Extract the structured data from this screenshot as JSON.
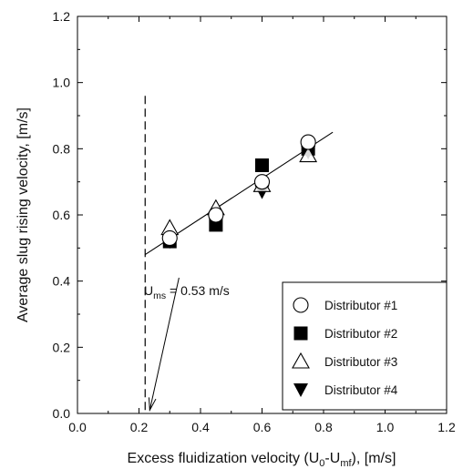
{
  "chart_data": {
    "type": "scatter",
    "xlabel": "Excess fluidization velocity (U",
    "xlabel_sub1": "0",
    "xlabel_mid": "-U",
    "xlabel_sub2": "mf",
    "xlabel_end": "), [m/s]",
    "ylabel": "Average slug rising velocity, [m/s]",
    "xlim": [
      0.0,
      1.2
    ],
    "ylim": [
      0.0,
      1.2
    ],
    "x_ticks": [
      "0.0",
      "0.2",
      "0.4",
      "0.6",
      "0.8",
      "1.0",
      "1.2"
    ],
    "y_ticks": [
      "0.0",
      "0.2",
      "0.4",
      "0.6",
      "0.8",
      "1.0",
      "1.2"
    ],
    "legend_position": "lower-right",
    "series": [
      {
        "name": "Distributor #1",
        "marker": "circle-open",
        "x": [
          0.3,
          0.45,
          0.6,
          0.75
        ],
        "y": [
          0.53,
          0.6,
          0.7,
          0.82
        ]
      },
      {
        "name": "Distributor #2",
        "marker": "square-filled",
        "x": [
          0.3,
          0.45,
          0.6,
          0.75
        ],
        "y": [
          0.52,
          0.57,
          0.75,
          0.8
        ]
      },
      {
        "name": "Distributor #3",
        "marker": "triangle-up-open",
        "x": [
          0.3,
          0.45,
          0.6,
          0.75
        ],
        "y": [
          0.56,
          0.62,
          0.69,
          0.78
        ]
      },
      {
        "name": "Distributor #4",
        "marker": "triangle-down-filled",
        "x": [
          0.3,
          0.45,
          0.6,
          0.75
        ],
        "y": [
          0.52,
          0.58,
          0.67,
          0.79
        ]
      }
    ],
    "fit_line": {
      "x": [
        0.22,
        0.83
      ],
      "y": [
        0.48,
        0.85
      ]
    },
    "threshold_line": {
      "x": 0.22,
      "y_top": 0.96
    },
    "annotation": {
      "text_main": "U",
      "text_sub": "ms",
      "text_rest": " = 0.53 m/s",
      "arrow_tail": [
        0.33,
        0.41
      ],
      "arrow_head": [
        0.235,
        0.01
      ]
    }
  }
}
